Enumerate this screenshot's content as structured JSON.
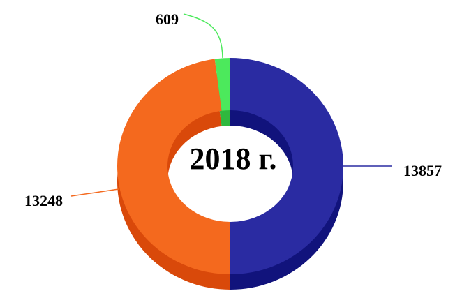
{
  "chart_data": {
    "type": "donut",
    "title": "2018 г.",
    "values": [
      13857,
      13248,
      609
    ],
    "colors": [
      "#2a2ba2",
      "#f4691e",
      "#4ce95c"
    ],
    "side_colors": [
      "#11137c",
      "#d9490a",
      "#2fb83e"
    ]
  }
}
